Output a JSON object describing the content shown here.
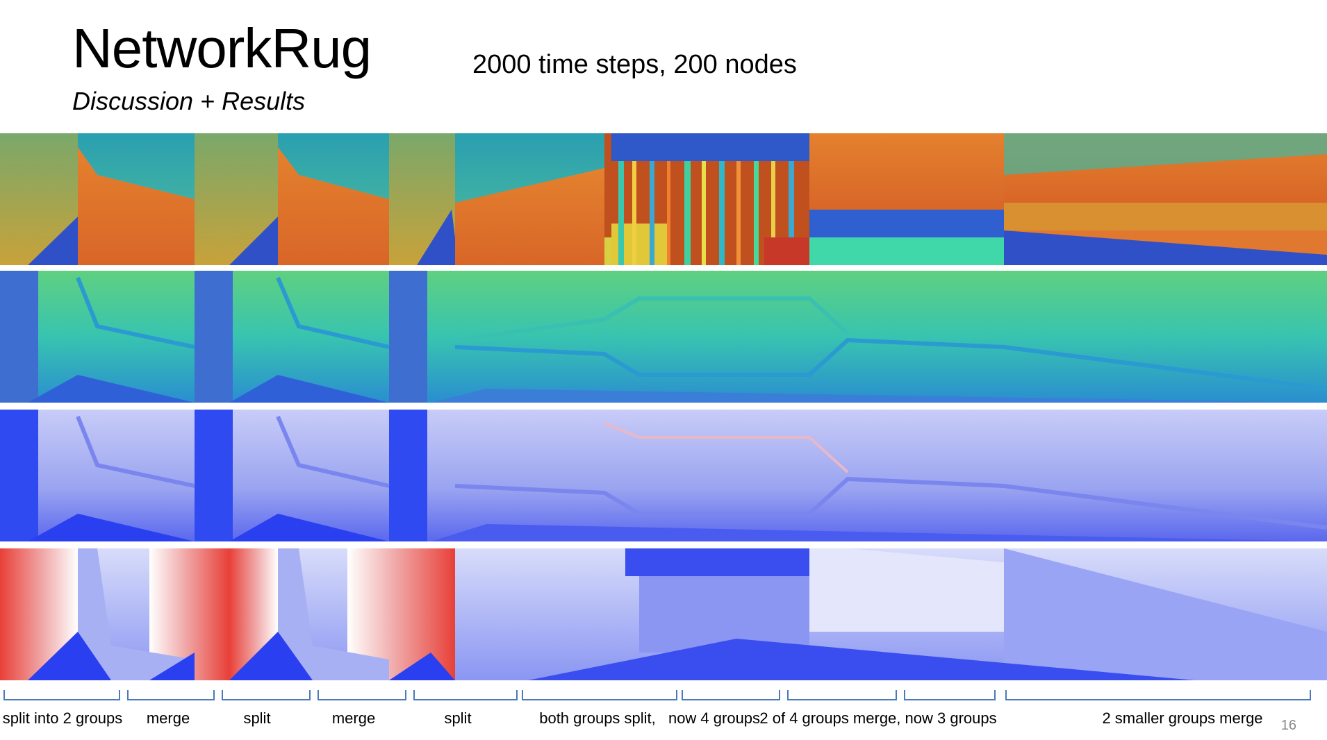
{
  "slide": {
    "title": "NetworkRug",
    "subtitle": "Discussion + Results",
    "caption": "2000 time steps, 200 nodes",
    "page_number": "16"
  },
  "segments": [
    "split into 2 groups",
    "merge",
    "split",
    "merge",
    "split",
    "both groups split,",
    "now 4 groups",
    "2 of 4 groups merge, now 3 groups",
    "2 smaller groups merge"
  ],
  "colors": {
    "bracket": "#4a7ab8",
    "jet_blue": "#3b6fd8",
    "jet_cyan": "#2ec4c0",
    "jet_green": "#7fd96a",
    "orange": "#e07a2a",
    "red": "#e8403a",
    "blue": "#2a3cf0",
    "white": "#ffffff"
  }
}
